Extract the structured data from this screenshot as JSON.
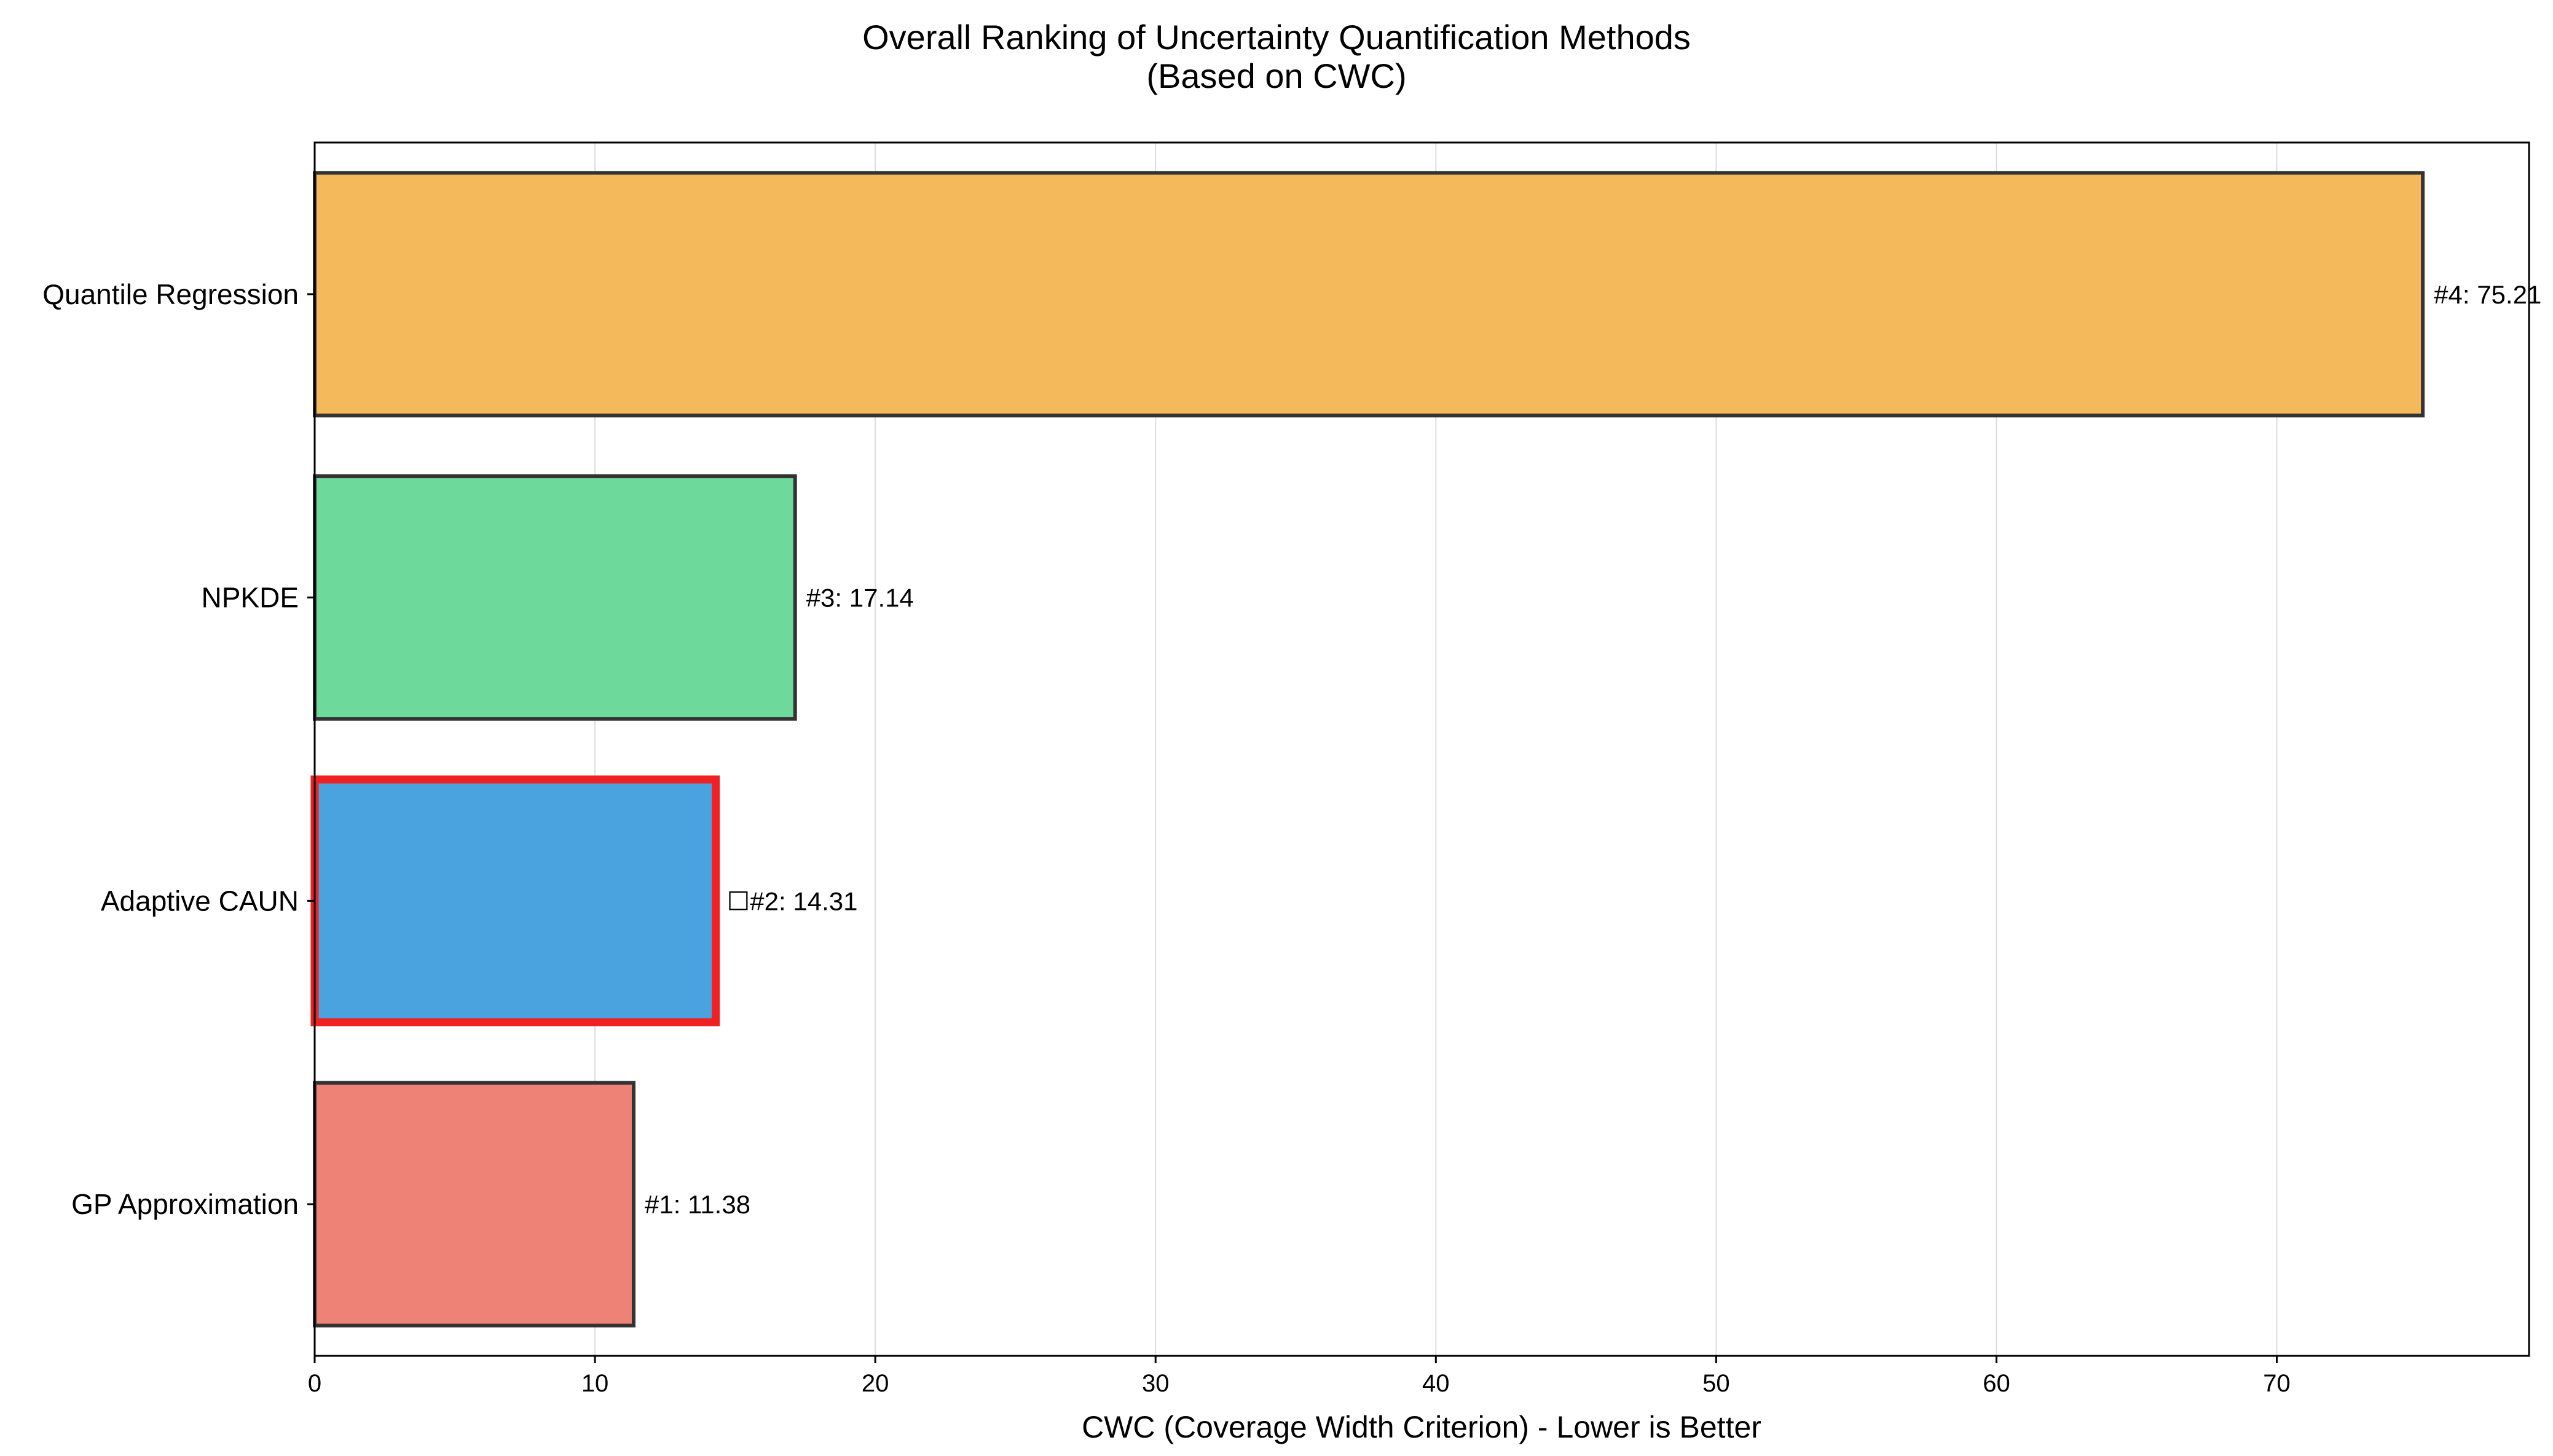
{
  "chart_data": {
    "type": "bar",
    "orientation": "horizontal",
    "title": "Overall Ranking of Uncertainty Quantification Methods",
    "subtitle": "(Based on CWC)",
    "xlabel": "CWC (Coverage Width Criterion) - Lower is Better",
    "ylabel": "",
    "xlim": [
      0,
      79
    ],
    "xticks": [
      0,
      10,
      20,
      30,
      40,
      50,
      60,
      70
    ],
    "grid": "vertical",
    "legend": "none",
    "categories": [
      "GP Approximation",
      "Adaptive CAUN",
      "NPKDE",
      "Quantile Regression"
    ],
    "values": [
      11.38,
      14.31,
      17.14,
      75.21
    ],
    "ranks": [
      1,
      2,
      3,
      4
    ],
    "value_labels": [
      "#1: 11.38",
      "☐#2: 14.31",
      "#3: 17.14",
      "#4: 75.21"
    ],
    "colors": [
      "#ee8277",
      "#4aa3df",
      "#6dd99b",
      "#f4b95a"
    ],
    "highlighted": "Adaptive CAUN",
    "highlight_color": "#ee2222",
    "edge_color": "#333333"
  }
}
